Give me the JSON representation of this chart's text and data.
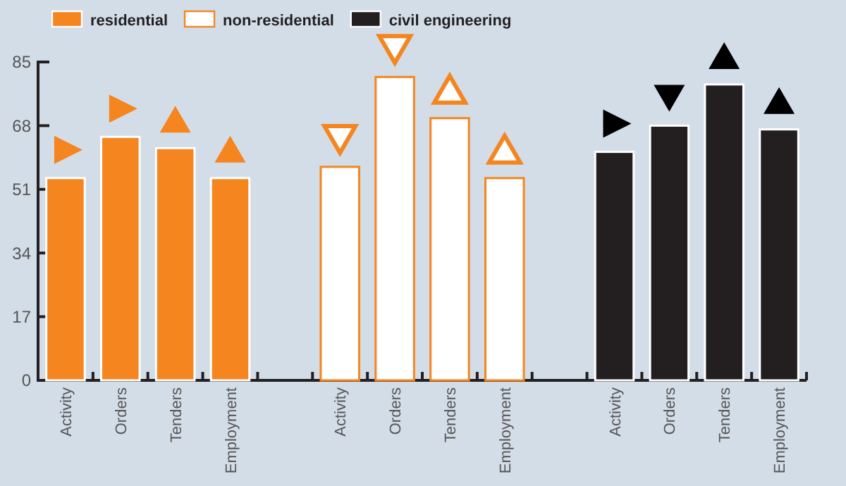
{
  "chart_data": {
    "type": "bar",
    "categories": [
      "Activity",
      "Orders",
      "Tenders",
      "Employment",
      null,
      "Activity",
      "Orders",
      "Tenders",
      "Employment",
      null,
      "Activity",
      "Orders",
      "Tenders",
      "Employment"
    ],
    "series": [
      {
        "name": "residential",
        "color": "#f5851f",
        "values": [
          54,
          65,
          62,
          54,
          null,
          null,
          null,
          null,
          null,
          null,
          null,
          null,
          null,
          null
        ]
      },
      {
        "name": "non-residential",
        "color": "#ffffff",
        "values": [
          null,
          null,
          null,
          null,
          null,
          57,
          81,
          70,
          54,
          null,
          null,
          null,
          null,
          null
        ]
      },
      {
        "name": "civil engineering",
        "color": "#231f20",
        "values": [
          null,
          null,
          null,
          null,
          null,
          null,
          null,
          null,
          null,
          null,
          61,
          68,
          79,
          67
        ]
      }
    ],
    "ylim": [
      0,
      85
    ],
    "yticks": [
      0,
      17,
      34,
      51,
      68,
      85
    ],
    "grid": false,
    "legend": "top left"
  }
}
